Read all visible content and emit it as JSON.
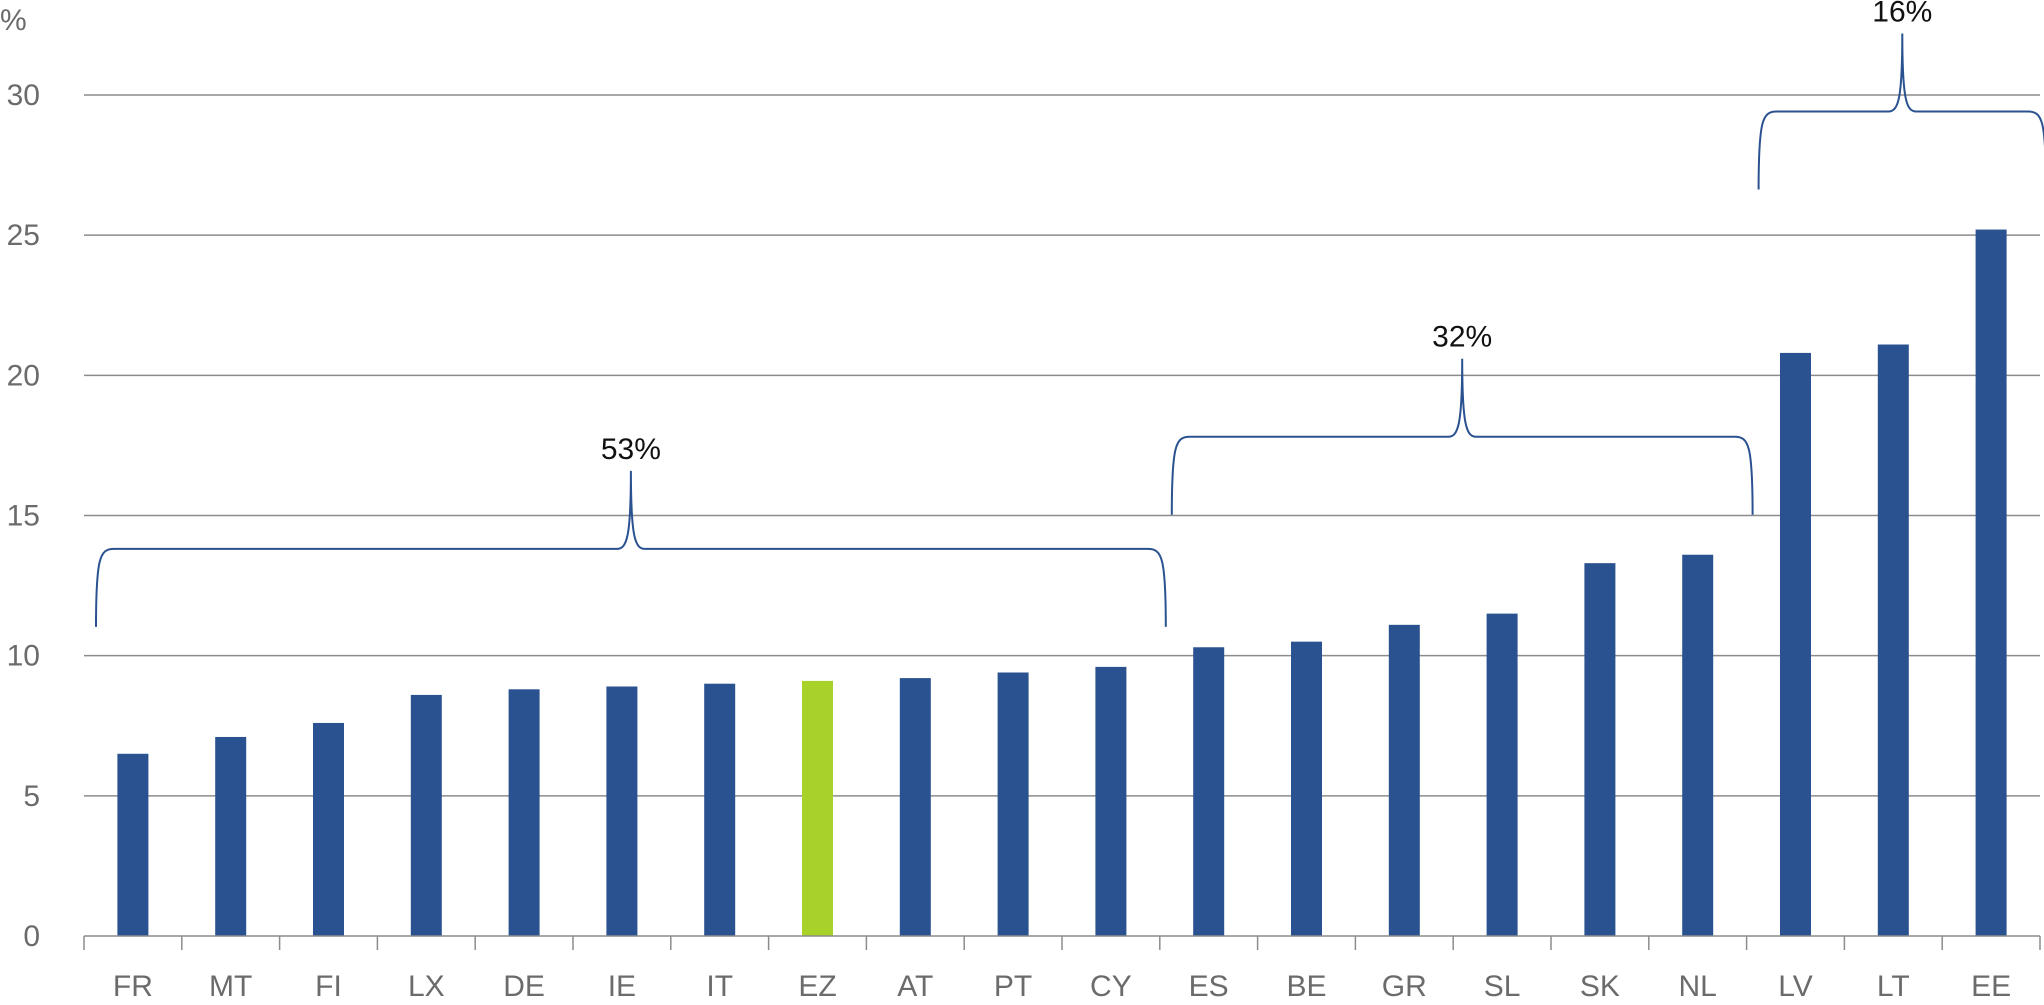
{
  "chart_data": {
    "type": "bar",
    "ylabel": "%",
    "ylim": [
      0,
      30
    ],
    "yticks": [
      0,
      5,
      10,
      15,
      20,
      25,
      30
    ],
    "grid": true,
    "categories": [
      "FR",
      "MT",
      "FI",
      "LX",
      "DE",
      "IE",
      "IT",
      "EZ",
      "AT",
      "PT",
      "CY",
      "ES",
      "BE",
      "GR",
      "SL",
      "SK",
      "NL",
      "LV",
      "LT",
      "EE"
    ],
    "values": [
      6.5,
      7.1,
      7.6,
      8.6,
      8.8,
      8.9,
      9.0,
      9.1,
      9.2,
      9.4,
      9.6,
      10.3,
      10.5,
      11.1,
      11.5,
      13.3,
      13.6,
      20.8,
      21.1,
      25.2
    ],
    "highlight_category": "EZ",
    "groups": [
      {
        "label": "53%",
        "from": "FR",
        "to": "CY"
      },
      {
        "label": "32%",
        "from": "ES",
        "to": "NL"
      },
      {
        "label": "16%",
        "from": "LV",
        "to": "EE"
      }
    ],
    "colors": {
      "bar": "#2b5290",
      "highlight": "#a8d12a",
      "brace": "#2b5290"
    }
  }
}
